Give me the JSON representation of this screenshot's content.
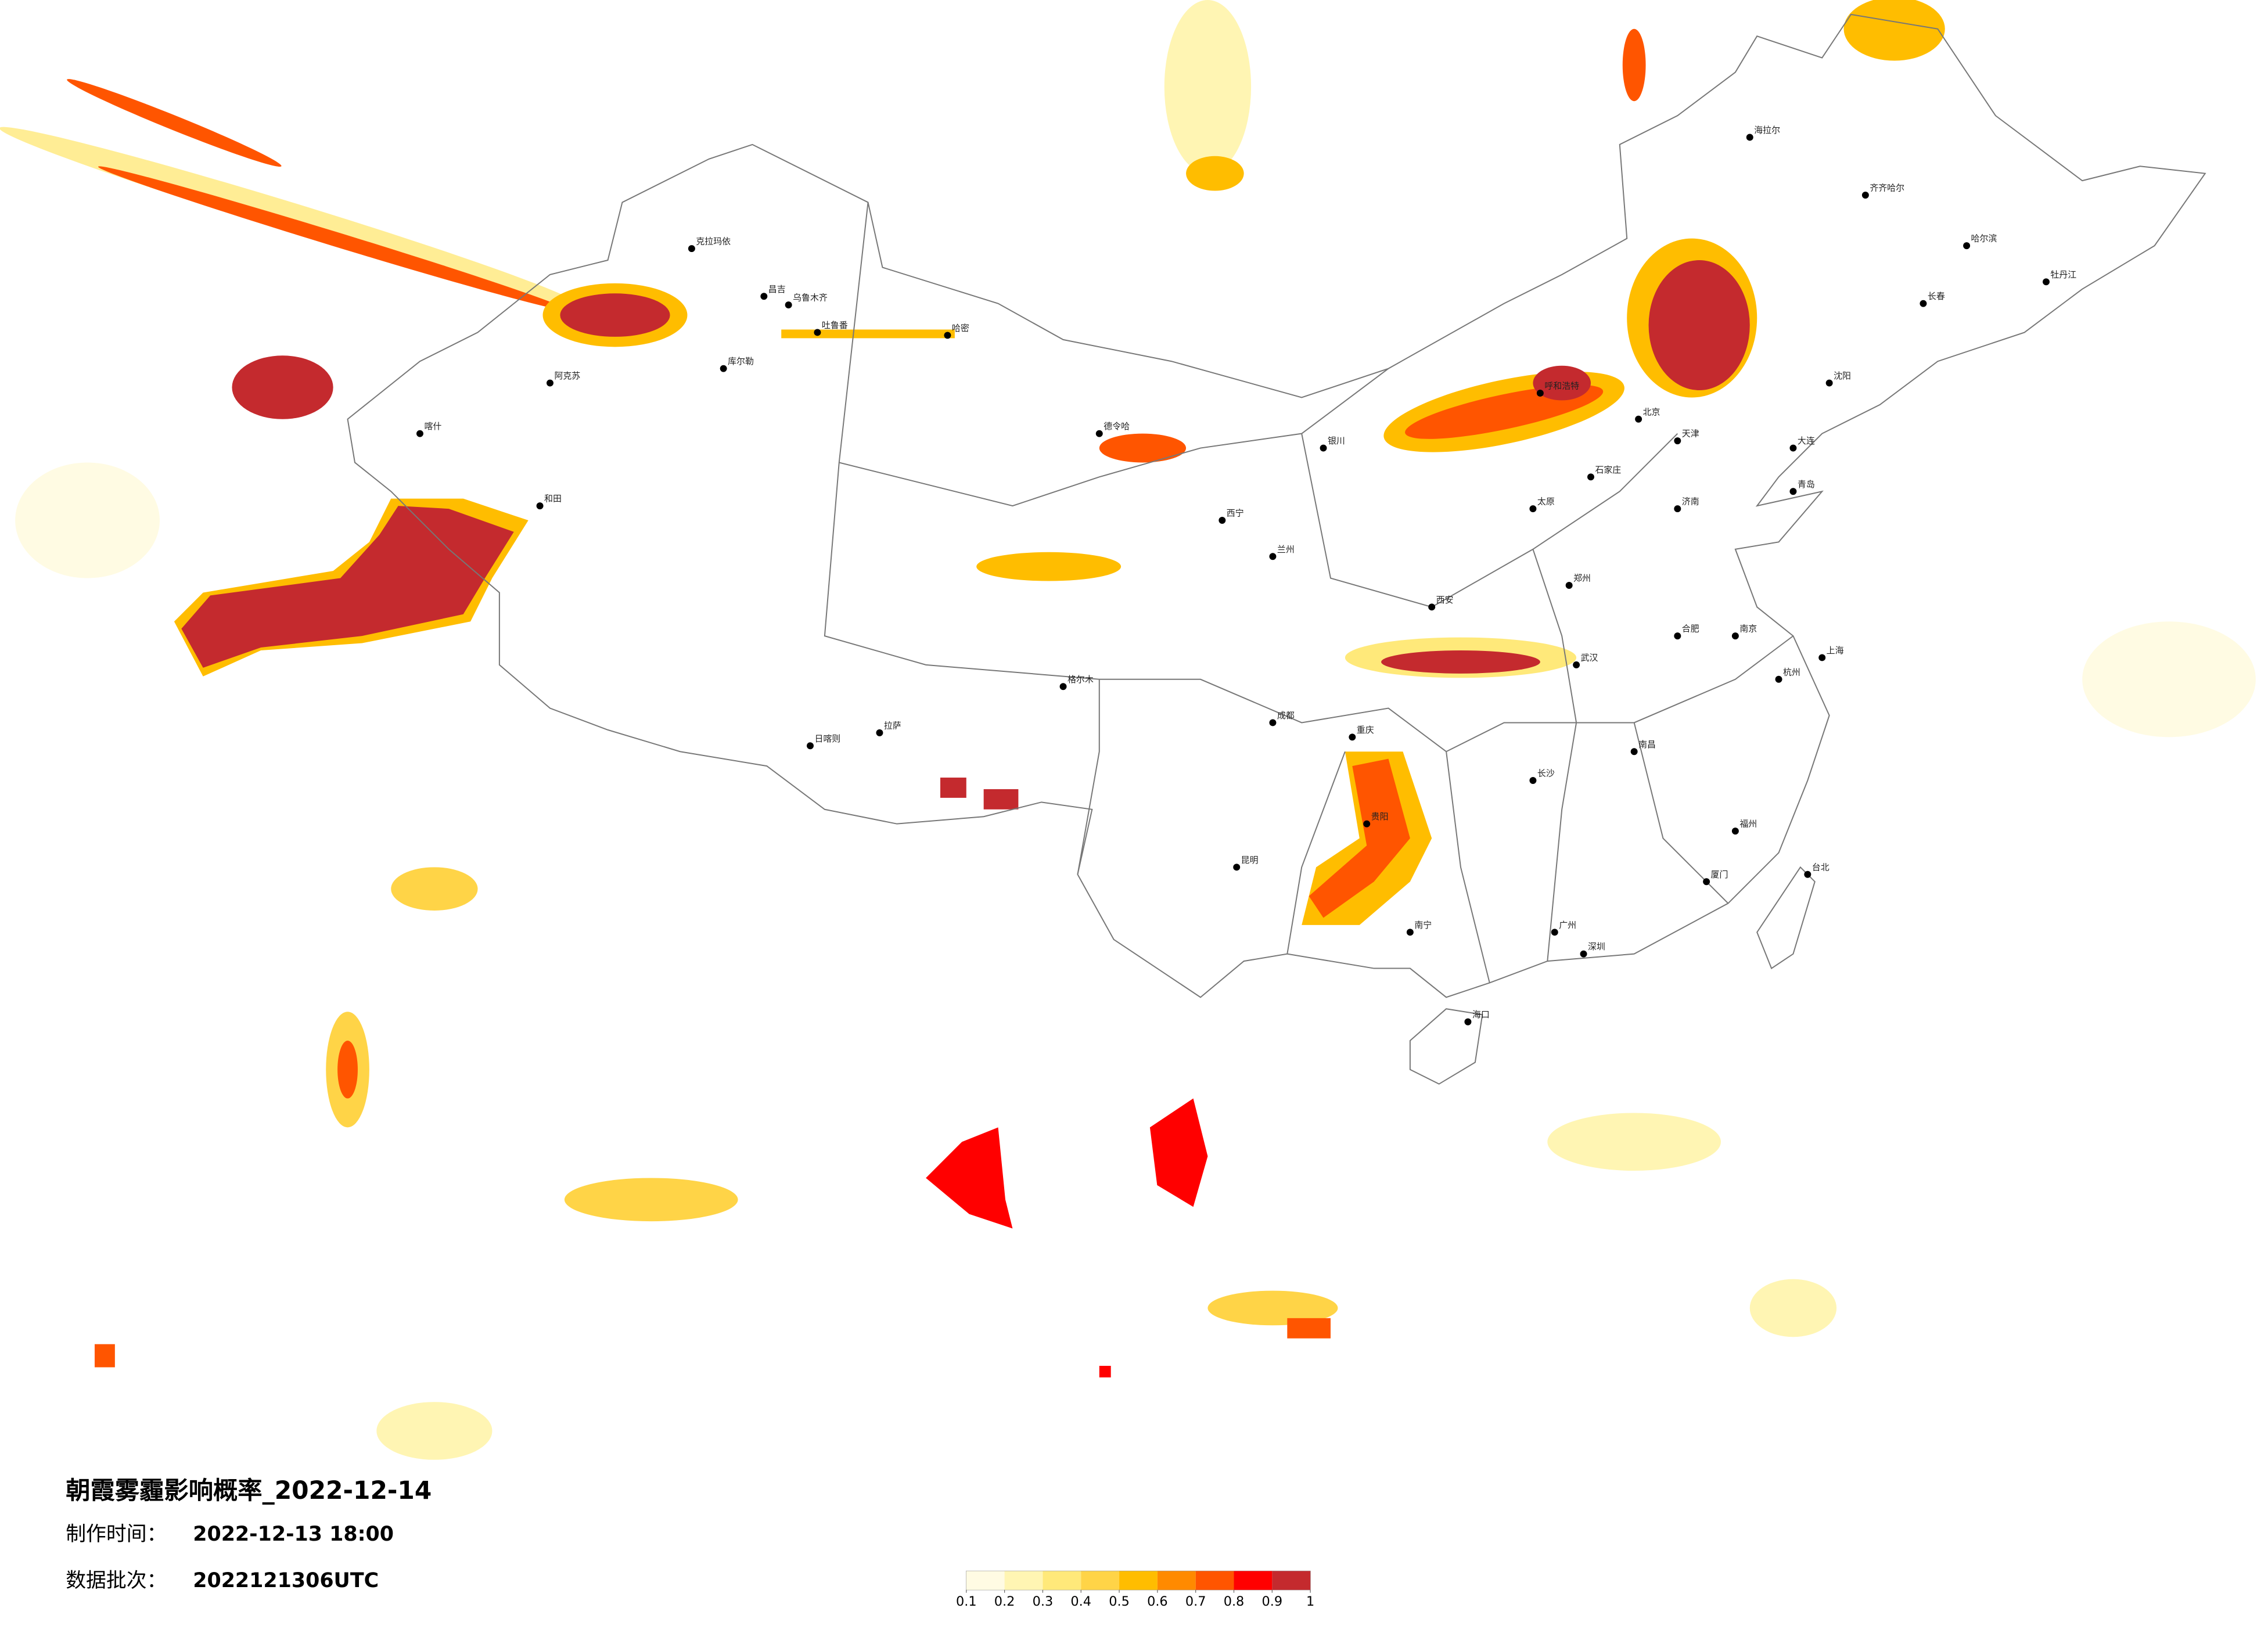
{
  "header": {
    "title": "朝霞雾霾影响概率_2022-12-14",
    "time_label": "制作时间：",
    "time_value": "2022-12-13 18:00",
    "batch_label": "数据批次：",
    "batch_value": "2022121306UTC"
  },
  "legend": {
    "colors": [
      "#fffbe3",
      "#fff5b3",
      "#ffe97a",
      "#ffd447",
      "#ffbd00",
      "#ff8a00",
      "#ff5500",
      "#ff0000",
      "#c42a2e"
    ],
    "ticks": [
      0.1,
      0.2,
      0.3,
      0.4,
      0.5,
      0.6,
      0.7,
      0.8,
      0.9,
      1
    ]
  },
  "cities": [
    "克拉玛依",
    "昌吉",
    "乌鲁木齐",
    "吐鲁番",
    "哈密",
    "库尔勒",
    "阿克苏",
    "喀什",
    "和田",
    "拉萨",
    "日喀则",
    "格尔木",
    "德令哈",
    "西宁",
    "兰州",
    "银川",
    "呼和浩特",
    "北京",
    "天津",
    "石家庄",
    "太原",
    "济南",
    "郑州",
    "西安",
    "成都",
    "重庆",
    "武汉",
    "长沙",
    "南昌",
    "杭州",
    "上海",
    "南京",
    "福州",
    "广州",
    "南宁",
    "贵阳",
    "昆明",
    "海口",
    "台北",
    "哈尔滨",
    "长春",
    "沈阳",
    "大连",
    "海拉尔",
    "齐齐哈尔",
    "牡丹江",
    "青岛",
    "合肥",
    "厦门",
    "深圳"
  ]
}
